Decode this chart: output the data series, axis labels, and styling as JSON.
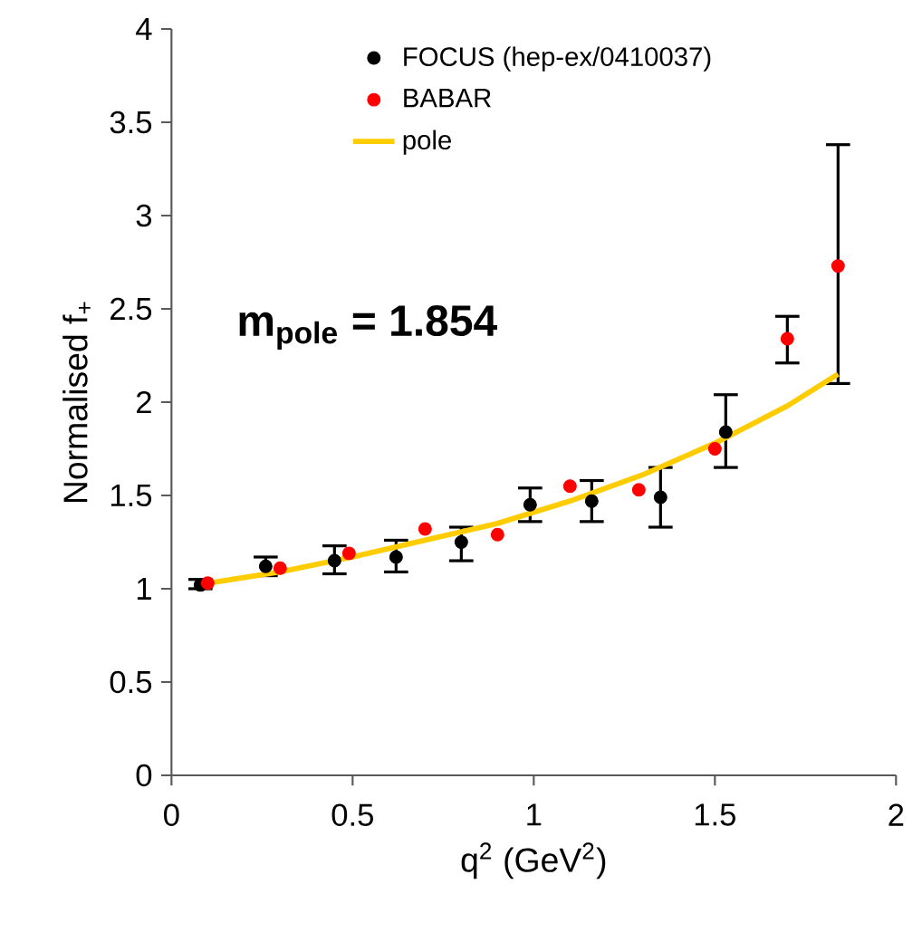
{
  "chart_data": {
    "type": "scatter",
    "xlabel": "q$^{2}$ (GeV$^{2}$)",
    "ylabel": "Normalised f$_{+}$",
    "xlim": [
      0,
      2
    ],
    "ylim": [
      0,
      4
    ],
    "xticks": [
      0,
      0.5,
      1,
      1.5,
      2
    ],
    "yticks": [
      0,
      0.5,
      1,
      1.5,
      2,
      2.5,
      3,
      3.5,
      4
    ],
    "grid": false,
    "legend": "top",
    "annotations": [
      "m$_{pole}$ = 1.854"
    ],
    "series": [
      {
        "name": "FOCUS (hep-ex/0410037)",
        "color": "#000000",
        "marker": "circle",
        "x": [
          0.08,
          0.26,
          0.45,
          0.62,
          0.8,
          0.99,
          1.16,
          1.35,
          1.53
        ],
        "values": [
          1.02,
          1.12,
          1.15,
          1.17,
          1.25,
          1.45,
          1.47,
          1.49,
          1.84
        ],
        "errors": [
          [
            1.0,
            1.05
          ],
          [
            1.07,
            1.17
          ],
          [
            1.08,
            1.23
          ],
          [
            1.09,
            1.26
          ],
          [
            1.15,
            1.33
          ],
          [
            1.36,
            1.54
          ],
          [
            1.36,
            1.58
          ],
          [
            1.33,
            1.65
          ],
          [
            1.65,
            2.04
          ]
        ]
      },
      {
        "name": "BABAR",
        "color": "#ff0000",
        "marker": "circle",
        "x": [
          0.1,
          0.3,
          0.49,
          0.7,
          0.9,
          1.1,
          1.29,
          1.5,
          1.7,
          1.84
        ],
        "values": [
          1.03,
          1.11,
          1.19,
          1.32,
          1.29,
          1.55,
          1.53,
          1.75,
          2.34,
          2.73
        ],
        "errors": [
          null,
          null,
          null,
          null,
          null,
          null,
          null,
          null,
          [
            2.21,
            2.46
          ],
          [
            2.1,
            3.38
          ]
        ]
      },
      {
        "name": "pole",
        "type": "line",
        "marker": "none",
        "color": "#ffcc00",
        "x": [
          0.1,
          0.3,
          0.5,
          0.7,
          0.9,
          1.1,
          1.3,
          1.5,
          1.7,
          1.84
        ],
        "values": [
          1.03,
          1.09,
          1.17,
          1.26,
          1.35,
          1.47,
          1.61,
          1.78,
          1.98,
          2.15
        ]
      }
    ]
  }
}
